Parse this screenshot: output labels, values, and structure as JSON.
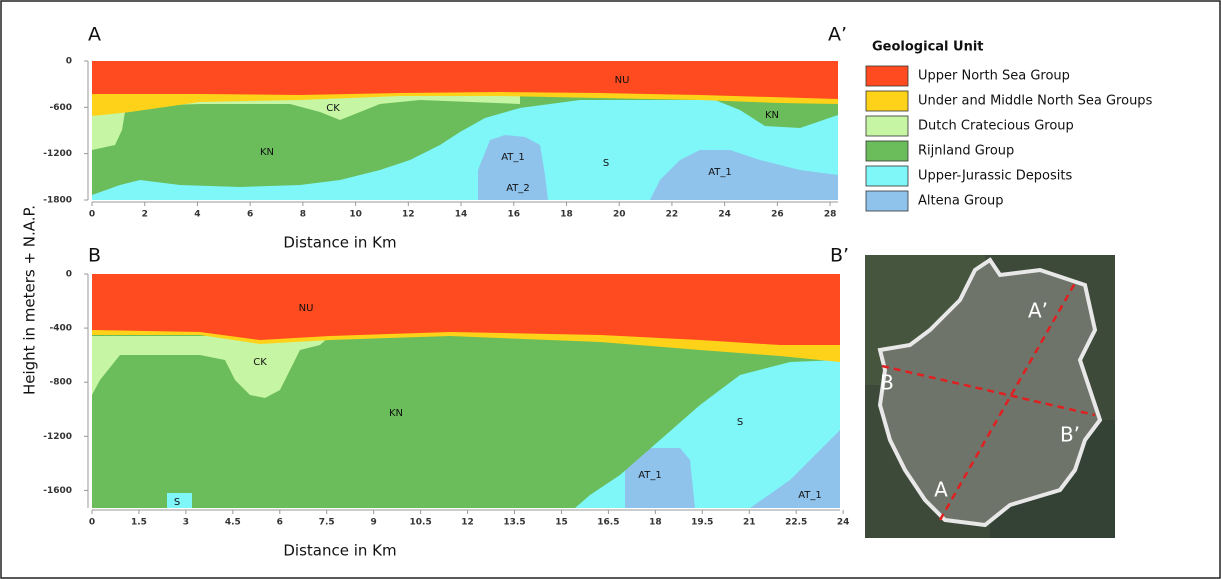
{
  "figure": {
    "y_label": "Height in meters + N.A.P."
  },
  "chart_data": [
    {
      "type": "cross-section",
      "left_label": "A",
      "right_label": "A’",
      "x_label": "Distance in Km",
      "xlim": [
        0,
        28.3
      ],
      "xticks": [
        0,
        2,
        4,
        6,
        8,
        10,
        12,
        14,
        16,
        18,
        20,
        22,
        24,
        26,
        28
      ],
      "ylim": [
        -1800,
        0
      ],
      "yticks": [
        0,
        -600,
        -1200,
        -1800
      ],
      "region_labels": [
        "NU",
        "CK",
        "KN",
        "KN",
        "AT_1",
        "S",
        "AT_1",
        "AT_2"
      ]
    },
    {
      "type": "cross-section",
      "left_label": "B",
      "right_label": "B’",
      "x_label": "Distance in Km",
      "xlim": [
        0,
        23.9
      ],
      "xticks": [
        0,
        1.5,
        3,
        4.5,
        6,
        7.5,
        9,
        10.5,
        12,
        13.5,
        15,
        16.5,
        18,
        19.5,
        21,
        22.5,
        24
      ],
      "ylim": [
        -1730,
        0
      ],
      "yticks": [
        0,
        -400,
        -800,
        -1200,
        -1600
      ],
      "region_labels": [
        "NU",
        "CK",
        "KN",
        "S",
        "AT_1",
        "AT_1",
        "S"
      ]
    }
  ],
  "legend": {
    "title": "Geological Unit",
    "items": [
      {
        "name": "Upper North Sea Group",
        "color": "#ff4b1f"
      },
      {
        "name": "Under and Middle North Sea Groups",
        "color": "#ffd21a"
      },
      {
        "name": "Dutch Cratecious Group",
        "color": "#c6f5a4"
      },
      {
        "name": "Rijnland Group",
        "color": "#6abd5a"
      },
      {
        "name": "Upper-Jurassic Deposits",
        "color": "#7ff6f8"
      },
      {
        "name": "Altena Group",
        "color": "#8fc3ec"
      }
    ]
  },
  "map": {
    "labels": [
      "A’",
      "B",
      "B’",
      "A"
    ]
  }
}
